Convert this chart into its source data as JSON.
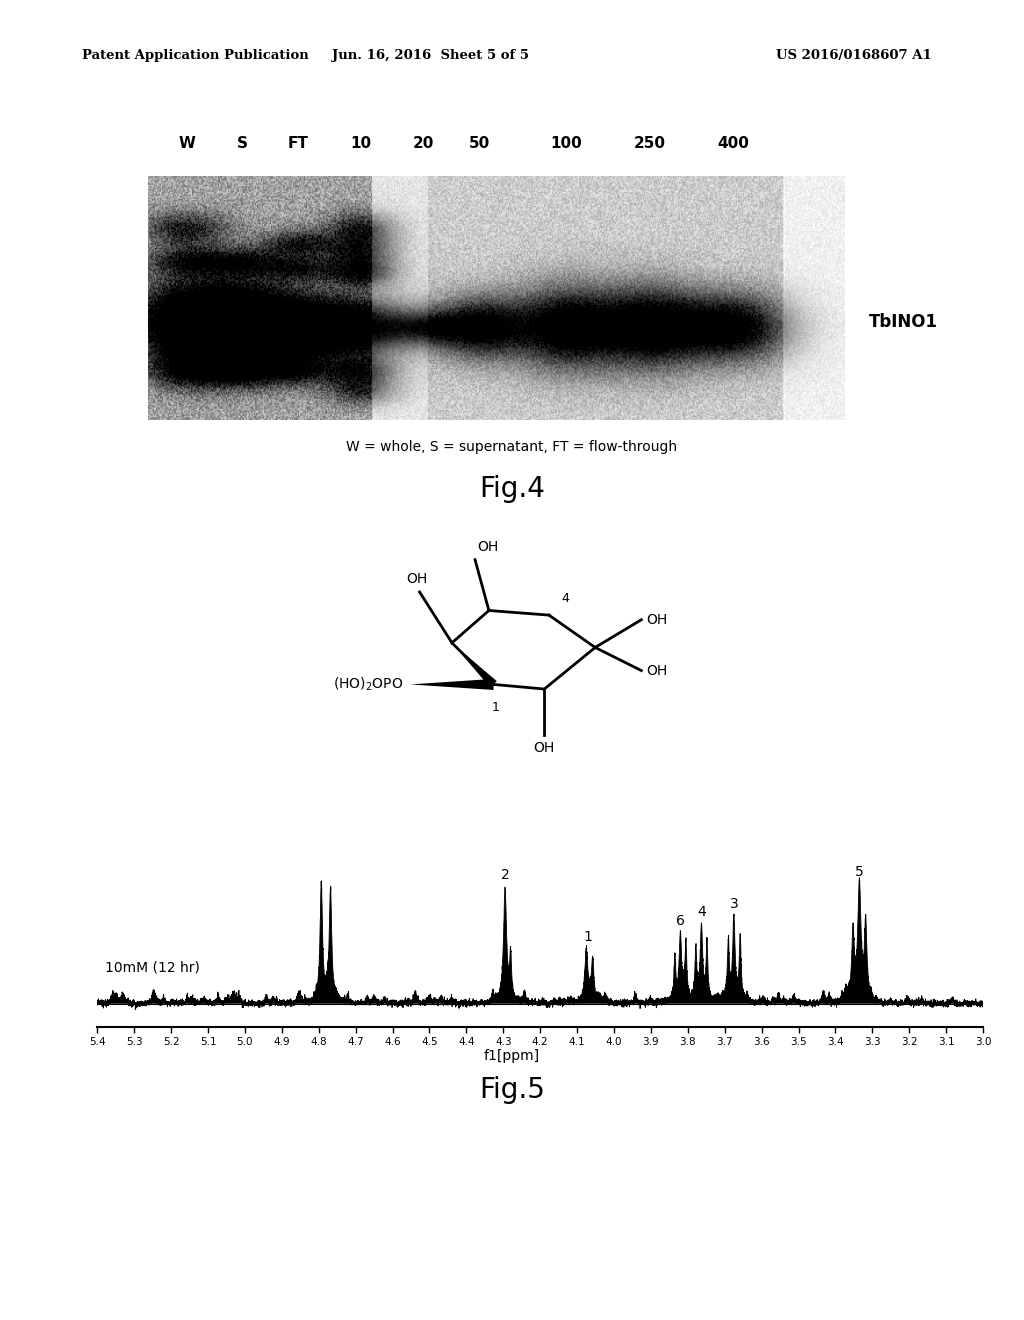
{
  "header_left": "Patent Application Publication",
  "header_center": "Jun. 16, 2016  Sheet 5 of 5",
  "header_right": "US 2016/0168607 A1",
  "gel_labels": [
    "W",
    "S",
    "FT",
    "10",
    "20",
    "50",
    "100",
    "250",
    "400"
  ],
  "gel_label_tbino1": "TbINO1",
  "gel_caption": "W = whole, S = supernatant, FT = flow-through",
  "fig4_label": "Fig.4",
  "fig5_label": "Fig.5",
  "nmr_label": "10mM (12 hr)",
  "nmr_xlabel": "f1[ppm]",
  "bg_color": "#ffffff"
}
